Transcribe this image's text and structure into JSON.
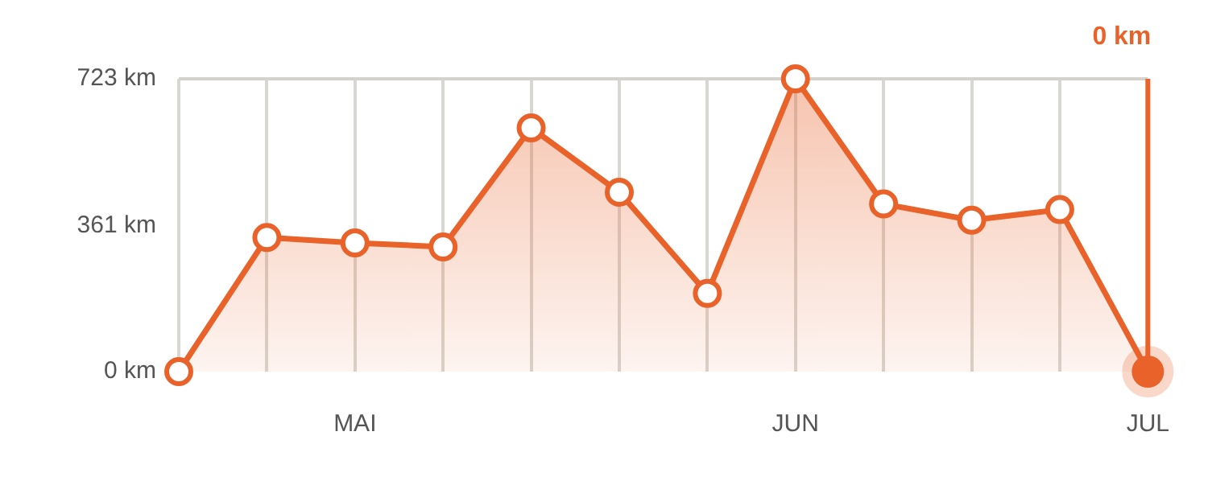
{
  "chart_data": {
    "type": "area",
    "categories": [
      null,
      null,
      "MAI",
      null,
      null,
      null,
      null,
      "JUN",
      null,
      null,
      null,
      "JUL"
    ],
    "series": [
      {
        "color": "#e8622a",
        "values": [
          0,
          331,
          318,
          308,
          602,
          443,
          193,
          723,
          414,
          374,
          400,
          0
        ]
      }
    ],
    "ylim": [
      0,
      723
    ],
    "yticks": [
      {
        "value": 0,
        "label": "0 km"
      },
      {
        "value": 361,
        "label": "361 km"
      },
      {
        "value": 723,
        "label": "723 km"
      }
    ],
    "grid": "x",
    "marker": "circle",
    "line_style": "solid",
    "legend": false,
    "ref_lines": [
      {
        "axis": "x",
        "value": "JUL",
        "label": "0 km",
        "color": "#e8622a"
      }
    ]
  }
}
